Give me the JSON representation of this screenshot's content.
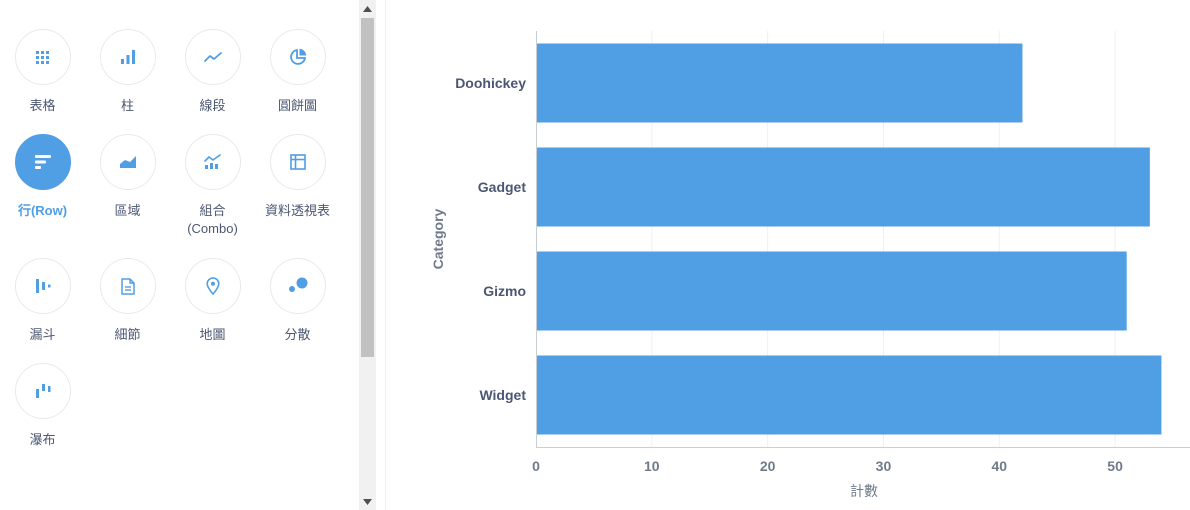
{
  "viz_types": [
    {
      "label": "表格",
      "icon": "table-icon",
      "selected": false
    },
    {
      "label": "柱",
      "icon": "bar-chart-icon",
      "selected": false
    },
    {
      "label": "線段",
      "icon": "line-chart-icon",
      "selected": false
    },
    {
      "label": "圓餅圖",
      "icon": "pie-chart-icon",
      "selected": false
    },
    {
      "label": "行(Row)",
      "icon": "row-chart-icon",
      "selected": true
    },
    {
      "label": "區域",
      "icon": "area-chart-icon",
      "selected": false
    },
    {
      "label": "組合 (Combo)",
      "icon": "combo-chart-icon",
      "selected": false
    },
    {
      "label": "資料透視表",
      "icon": "pivot-table-icon",
      "selected": false
    },
    {
      "label": "漏斗",
      "icon": "funnel-icon",
      "selected": false
    },
    {
      "label": "細節",
      "icon": "detail-icon",
      "selected": false
    },
    {
      "label": "地圖",
      "icon": "map-pin-icon",
      "selected": false
    },
    {
      "label": "分散",
      "icon": "scatter-icon",
      "selected": false
    },
    {
      "label": "瀑布",
      "icon": "waterfall-icon",
      "selected": false
    }
  ],
  "colors": {
    "accent": "#509ee3",
    "text": "#4c5773",
    "muted": "#6f7a8b"
  },
  "chart_data": {
    "type": "bar",
    "orientation": "horizontal",
    "categories": [
      "Doohickey",
      "Gadget",
      "Gizmo",
      "Widget"
    ],
    "values": [
      42,
      53,
      51,
      54
    ],
    "title": "",
    "xlabel": "計數",
    "ylabel": "Category",
    "xlim": [
      0,
      55
    ],
    "xticks": [
      0,
      10,
      20,
      30,
      40,
      50
    ],
    "grid": true,
    "bar_color": "#509ee3"
  }
}
